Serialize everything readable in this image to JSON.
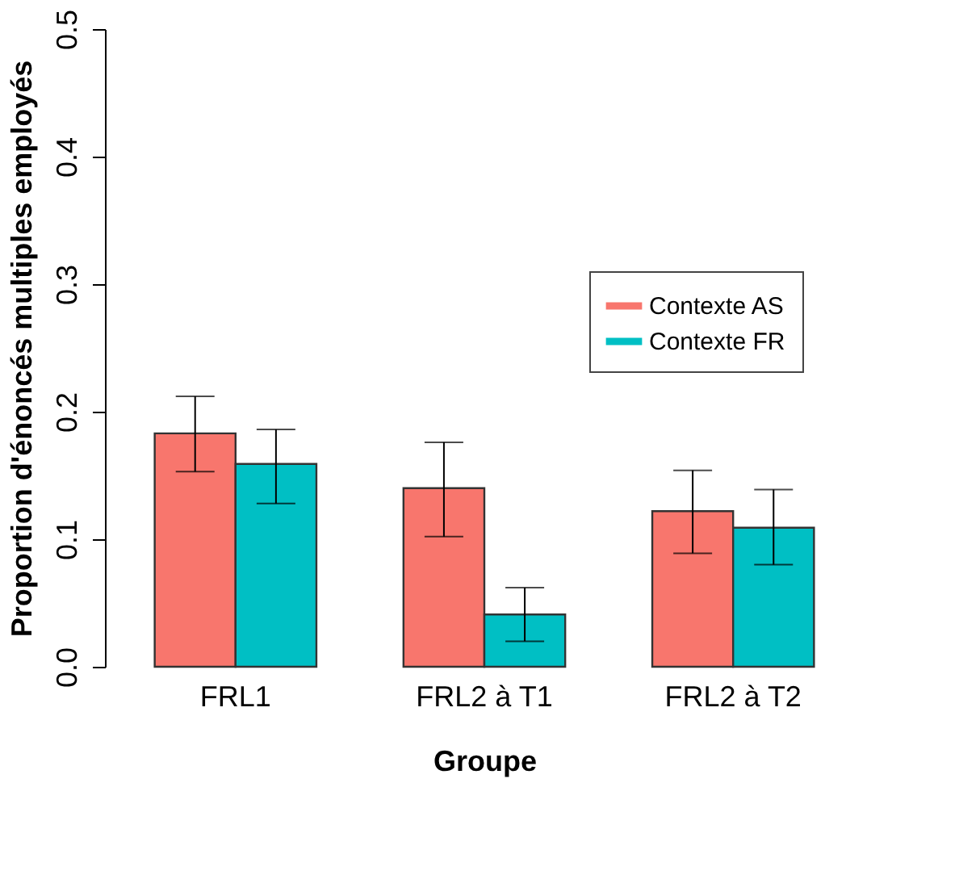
{
  "chart_data": {
    "type": "bar",
    "xlabel": "Groupe",
    "ylabel": "Proportion d'énoncés multiples employés",
    "categories": [
      "FRL1",
      "FRL2 à T1",
      "FRL2 à T2"
    ],
    "series": [
      {
        "name": "Contexte AS",
        "color": "#f8766d",
        "values": [
          0.183,
          0.14,
          0.122
        ],
        "errors": [
          [
            0.153,
            0.212
          ],
          [
            0.102,
            0.176
          ],
          [
            0.089,
            0.154
          ]
        ]
      },
      {
        "name": "Contexte FR",
        "color": "#00bfc4",
        "values": [
          0.159,
          0.041,
          0.109
        ],
        "errors": [
          [
            0.128,
            0.186
          ],
          [
            0.02,
            0.062
          ],
          [
            0.08,
            0.139
          ]
        ]
      }
    ],
    "ylim": [
      0,
      0.5
    ],
    "yticks": [
      {
        "value": 0,
        "label": "0.0"
      },
      0.1,
      0.2,
      0.3,
      0.4,
      0.5
    ],
    "legend": "right",
    "grid": false
  }
}
